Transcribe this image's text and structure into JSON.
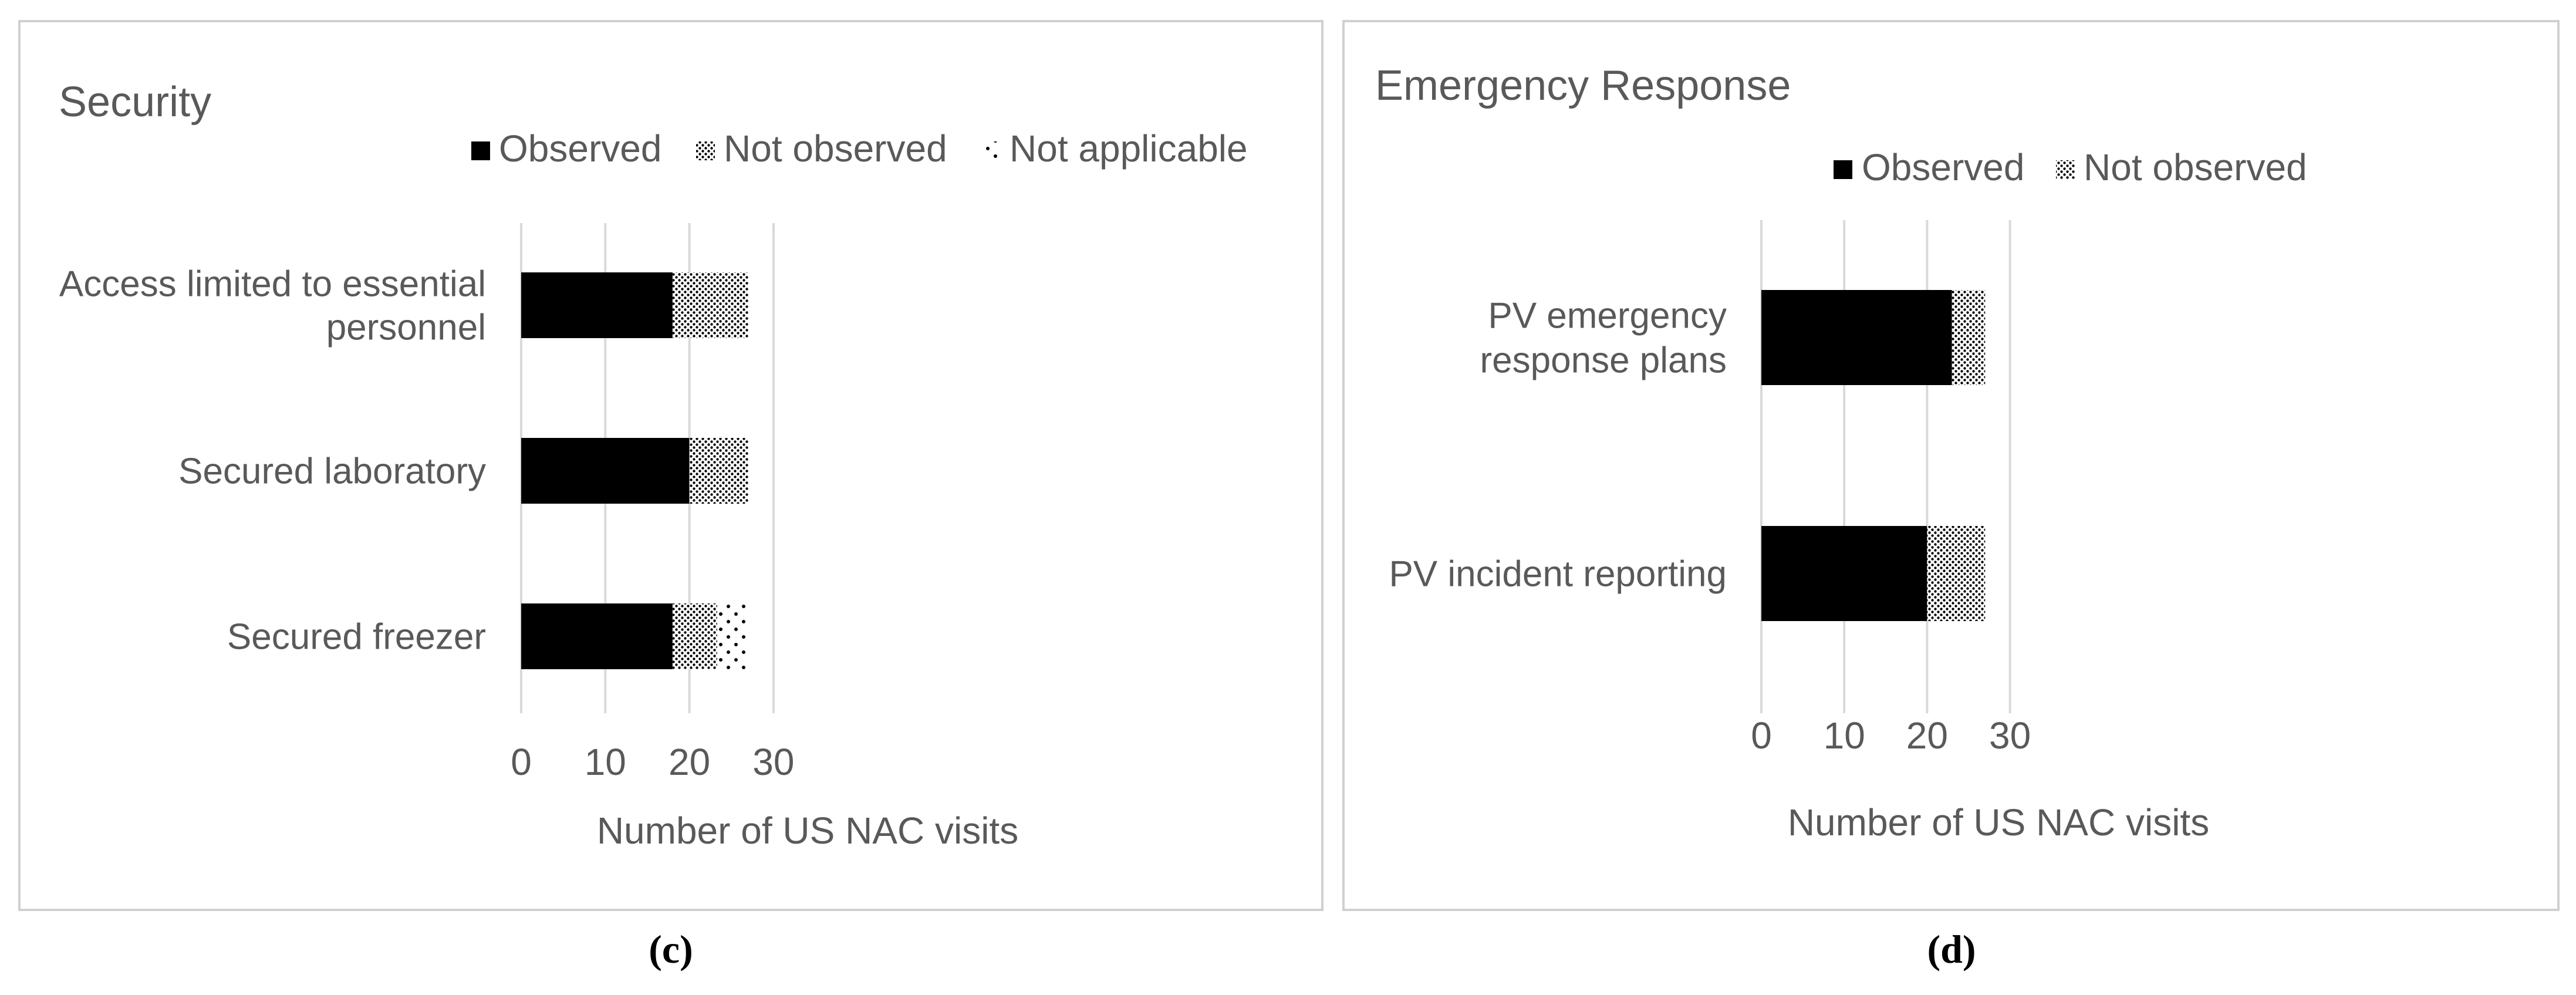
{
  "chart_data": [
    {
      "type": "bar",
      "orientation": "horizontal",
      "stacked": true,
      "title": "Security",
      "panel_label": "c",
      "categories": [
        "Access limited to essential personnel",
        "Secured laboratory",
        "Secured freezer"
      ],
      "series": [
        {
          "name": "Observed",
          "values": [
            18,
            20,
            18
          ],
          "pattern": "solid"
        },
        {
          "name": "Not observed",
          "values": [
            9,
            7,
            5.3
          ],
          "pattern": "dense-dots"
        },
        {
          "name": "Not applicable",
          "values": [
            0,
            0,
            3.7
          ],
          "pattern": "sparse-dots"
        }
      ],
      "xlabel": "Number of US NAC visits",
      "ylabel": "",
      "xlim": [
        0,
        30
      ],
      "xticks": [
        "0",
        "10",
        "20",
        "30"
      ],
      "grid": true,
      "legend": "top"
    },
    {
      "type": "bar",
      "orientation": "horizontal",
      "stacked": true,
      "title": "Emergency Response",
      "panel_label": "d",
      "categories": [
        "PV emergency response plans",
        "PV incident reporting"
      ],
      "series": [
        {
          "name": "Observed",
          "values": [
            23,
            20
          ],
          "pattern": "solid"
        },
        {
          "name": "Not observed",
          "values": [
            4,
            7
          ],
          "pattern": "dense-dots"
        }
      ],
      "xlabel": "Number of US NAC visits",
      "ylabel": "",
      "xlim": [
        0,
        30
      ],
      "xticks": [
        "0",
        "10",
        "20",
        "30"
      ],
      "grid": true,
      "legend": "top"
    }
  ],
  "colors": {
    "text": "#595959",
    "grid": "#d9d9d9",
    "frame": "#d0d0d0",
    "bar": "#000000",
    "caption": "#000000"
  },
  "captions": [
    "(c)",
    "(d)"
  ]
}
